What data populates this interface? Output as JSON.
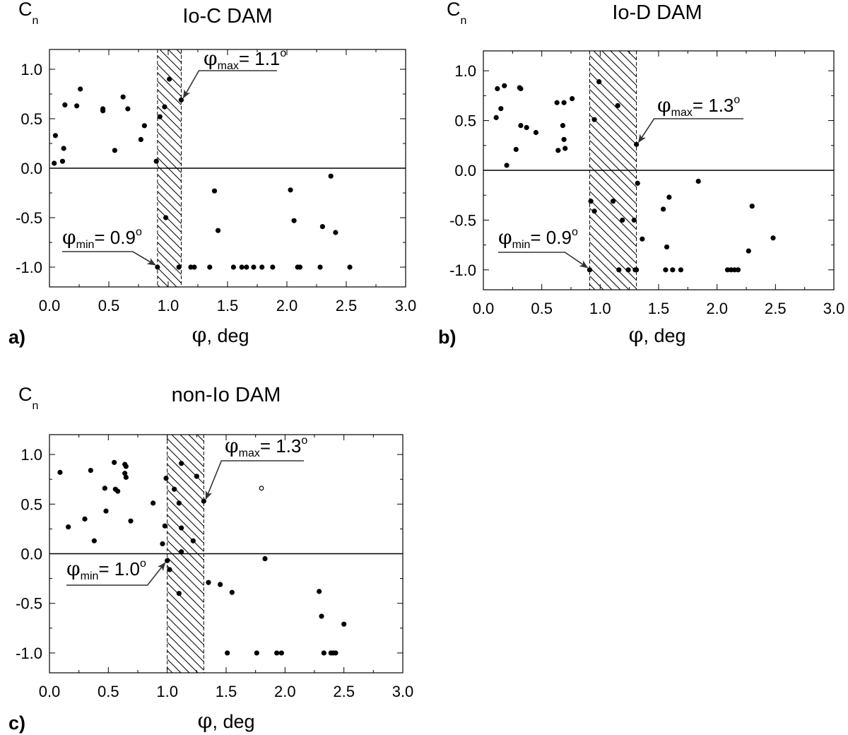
{
  "chart_data": [
    {
      "panel": "a)",
      "type": "scatter",
      "title": "Io-C DAM",
      "ylabel": "C",
      "ylabel_sub": "n",
      "xlabel_symbol": "φ",
      "xlabel_rest": ", deg",
      "xlim": [
        0,
        3
      ],
      "ylim": [
        -1.2,
        1.2
      ],
      "xticks": [
        "0.0",
        "0.5",
        "1.0",
        "1.5",
        "2.0",
        "2.5",
        "3.0"
      ],
      "yticks": [
        "1.0",
        "0.5",
        "0.0",
        "-0.5",
        "-1.0"
      ],
      "shaded_band": [
        0.91,
        1.11
      ],
      "annotations": [
        {
          "symbol": "φ",
          "sub": "max",
          "text": "= 1.1",
          "sup": "o",
          "point": [
            1.11,
            0.69
          ],
          "side": "max"
        },
        {
          "symbol": "φ",
          "sub": "min",
          "text": "= 0.9",
          "sup": "o",
          "point": [
            0.91,
            -1.0
          ],
          "side": "min"
        }
      ],
      "points": [
        [
          0.04,
          0.05
        ],
        [
          0.05,
          0.33
        ],
        [
          0.11,
          0.07
        ],
        [
          0.12,
          0.2
        ],
        [
          0.13,
          0.64
        ],
        [
          0.23,
          0.63
        ],
        [
          0.26,
          0.8
        ],
        [
          0.45,
          0.6
        ],
        [
          0.45,
          0.58
        ],
        [
          0.55,
          0.18
        ],
        [
          0.62,
          0.72
        ],
        [
          0.66,
          0.6
        ],
        [
          0.77,
          0.29
        ],
        [
          0.8,
          0.43
        ],
        [
          0.9,
          0.07
        ],
        [
          0.93,
          0.52
        ],
        [
          0.97,
          0.62
        ],
        [
          1.01,
          0.9
        ],
        [
          1.11,
          0.69
        ],
        [
          0.91,
          -1.0
        ],
        [
          0.98,
          -0.5
        ],
        [
          1.09,
          -1.0
        ],
        [
          1.19,
          -1.0
        ],
        [
          1.22,
          -1.0
        ],
        [
          1.35,
          -1.0
        ],
        [
          1.39,
          -0.23
        ],
        [
          1.42,
          -0.63
        ],
        [
          1.55,
          -1.0
        ],
        [
          1.62,
          -1.0
        ],
        [
          1.66,
          -1.0
        ],
        [
          1.72,
          -1.0
        ],
        [
          1.79,
          -1.0
        ],
        [
          1.88,
          -1.0
        ],
        [
          2.03,
          -0.22
        ],
        [
          2.06,
          -0.53
        ],
        [
          2.09,
          -1.0
        ],
        [
          2.11,
          -1.0
        ],
        [
          2.28,
          -1.0
        ],
        [
          2.3,
          -0.59
        ],
        [
          2.37,
          -0.08
        ],
        [
          2.41,
          -0.65
        ],
        [
          2.53,
          -1.0
        ]
      ],
      "open_points": []
    },
    {
      "panel": "b)",
      "type": "scatter",
      "title": "Io-D DAM",
      "ylabel": "C",
      "ylabel_sub": "n",
      "xlabel_symbol": "φ",
      "xlabel_rest": ", deg",
      "xlim": [
        0,
        3
      ],
      "ylim": [
        -1.2,
        1.2
      ],
      "xticks": [
        "0.0",
        "0.5",
        "1.0",
        "1.5",
        "2.0",
        "2.5",
        "3.0"
      ],
      "yticks": [
        "1.0",
        "0.5",
        "0.0",
        "-0.5",
        "-1.0"
      ],
      "shaded_band": [
        0.91,
        1.31
      ],
      "annotations": [
        {
          "symbol": "φ",
          "sub": "max",
          "text": "= 1.3",
          "sup": "o",
          "point": [
            1.31,
            0.26
          ],
          "side": "max"
        },
        {
          "symbol": "φ",
          "sub": "min",
          "text": "= 0.9",
          "sup": "o",
          "point": [
            0.91,
            -1.0
          ],
          "side": "min"
        }
      ],
      "points": [
        [
          0.11,
          0.53
        ],
        [
          0.12,
          0.82
        ],
        [
          0.15,
          0.62
        ],
        [
          0.18,
          0.85
        ],
        [
          0.2,
          0.05
        ],
        [
          0.28,
          0.21
        ],
        [
          0.31,
          0.83
        ],
        [
          0.32,
          0.82
        ],
        [
          0.32,
          0.45
        ],
        [
          0.37,
          0.43
        ],
        [
          0.45,
          0.38
        ],
        [
          0.63,
          0.68
        ],
        [
          0.64,
          0.2
        ],
        [
          0.68,
          0.45
        ],
        [
          0.69,
          0.31
        ],
        [
          0.69,
          0.68
        ],
        [
          0.7,
          0.22
        ],
        [
          0.76,
          0.72
        ],
        [
          0.95,
          0.51
        ],
        [
          0.99,
          0.89
        ],
        [
          1.15,
          0.65
        ],
        [
          1.31,
          0.26
        ],
        [
          1.32,
          -0.13
        ],
        [
          0.91,
          -1.0
        ],
        [
          0.92,
          -0.31
        ],
        [
          0.95,
          -0.41
        ],
        [
          1.11,
          -0.31
        ],
        [
          1.16,
          -1.0
        ],
        [
          1.19,
          -0.5
        ],
        [
          1.24,
          -1.0
        ],
        [
          1.29,
          -0.5
        ],
        [
          1.3,
          -1.0
        ],
        [
          1.31,
          -1.0
        ],
        [
          1.36,
          -0.69
        ],
        [
          1.54,
          -0.39
        ],
        [
          1.56,
          -1.0
        ],
        [
          1.57,
          -0.77
        ],
        [
          1.59,
          -0.27
        ],
        [
          1.62,
          -1.0
        ],
        [
          1.69,
          -1.0
        ],
        [
          1.84,
          -0.11
        ],
        [
          2.09,
          -1.0
        ],
        [
          2.12,
          -1.0
        ],
        [
          2.15,
          -1.0
        ],
        [
          2.18,
          -1.0
        ],
        [
          2.27,
          -0.81
        ],
        [
          2.3,
          -0.36
        ],
        [
          2.48,
          -0.68
        ]
      ],
      "open_points": []
    },
    {
      "panel": "c)",
      "type": "scatter",
      "title": "non-Io DAM",
      "ylabel": "C",
      "ylabel_sub": "n",
      "xlabel_symbol": "φ",
      "xlabel_rest": ", deg",
      "xlim": [
        0,
        3
      ],
      "ylim": [
        -1.2,
        1.2
      ],
      "xticks": [
        "0.0",
        "0.5",
        "1.0",
        "1.5",
        "2.0",
        "2.5",
        "3.0"
      ],
      "yticks": [
        "1.0",
        "0.5",
        "0.0",
        "-0.5",
        "-1.0"
      ],
      "shaded_band": [
        1.0,
        1.31
      ],
      "annotations": [
        {
          "symbol": "φ",
          "sub": "max",
          "text": "= 1.3",
          "sup": "o",
          "point": [
            1.31,
            0.53
          ],
          "side": "max"
        },
        {
          "symbol": "φ",
          "sub": "min",
          "text": "= 1.0",
          "sup": "o",
          "point": [
            1.0,
            -0.07
          ],
          "side": "min"
        }
      ],
      "points": [
        [
          0.09,
          0.82
        ],
        [
          0.16,
          0.27
        ],
        [
          0.3,
          0.35
        ],
        [
          0.35,
          0.84
        ],
        [
          0.38,
          0.13
        ],
        [
          0.47,
          0.66
        ],
        [
          0.48,
          0.43
        ],
        [
          0.55,
          0.92
        ],
        [
          0.56,
          0.65
        ],
        [
          0.58,
          0.63
        ],
        [
          0.64,
          0.9
        ],
        [
          0.64,
          0.81
        ],
        [
          0.65,
          0.88
        ],
        [
          0.65,
          0.77
        ],
        [
          0.69,
          0.33
        ],
        [
          0.88,
          0.51
        ],
        [
          0.96,
          0.1
        ],
        [
          0.98,
          0.28
        ],
        [
          0.99,
          0.76
        ],
        [
          1.06,
          0.65
        ],
        [
          1.1,
          0.51
        ],
        [
          1.12,
          0.91
        ],
        [
          1.12,
          0.26
        ],
        [
          1.12,
          0.02
        ],
        [
          1.22,
          0.13
        ],
        [
          1.25,
          0.78
        ],
        [
          1.31,
          0.53
        ],
        [
          1.0,
          -0.07
        ],
        [
          1.02,
          -0.16
        ],
        [
          1.1,
          -0.4
        ],
        [
          1.35,
          -0.29
        ],
        [
          1.45,
          -0.31
        ],
        [
          1.51,
          -1.0
        ],
        [
          1.55,
          -0.39
        ],
        [
          1.76,
          -1.0
        ],
        [
          1.83,
          -0.05
        ],
        [
          1.93,
          -1.0
        ],
        [
          1.97,
          -1.0
        ],
        [
          2.29,
          -0.38
        ],
        [
          2.31,
          -0.63
        ],
        [
          2.33,
          -1.0
        ],
        [
          2.39,
          -1.0
        ],
        [
          2.41,
          -1.0
        ],
        [
          2.43,
          -1.0
        ],
        [
          2.5,
          -0.71
        ]
      ],
      "open_points": [
        [
          1.8,
          0.66
        ]
      ]
    }
  ]
}
